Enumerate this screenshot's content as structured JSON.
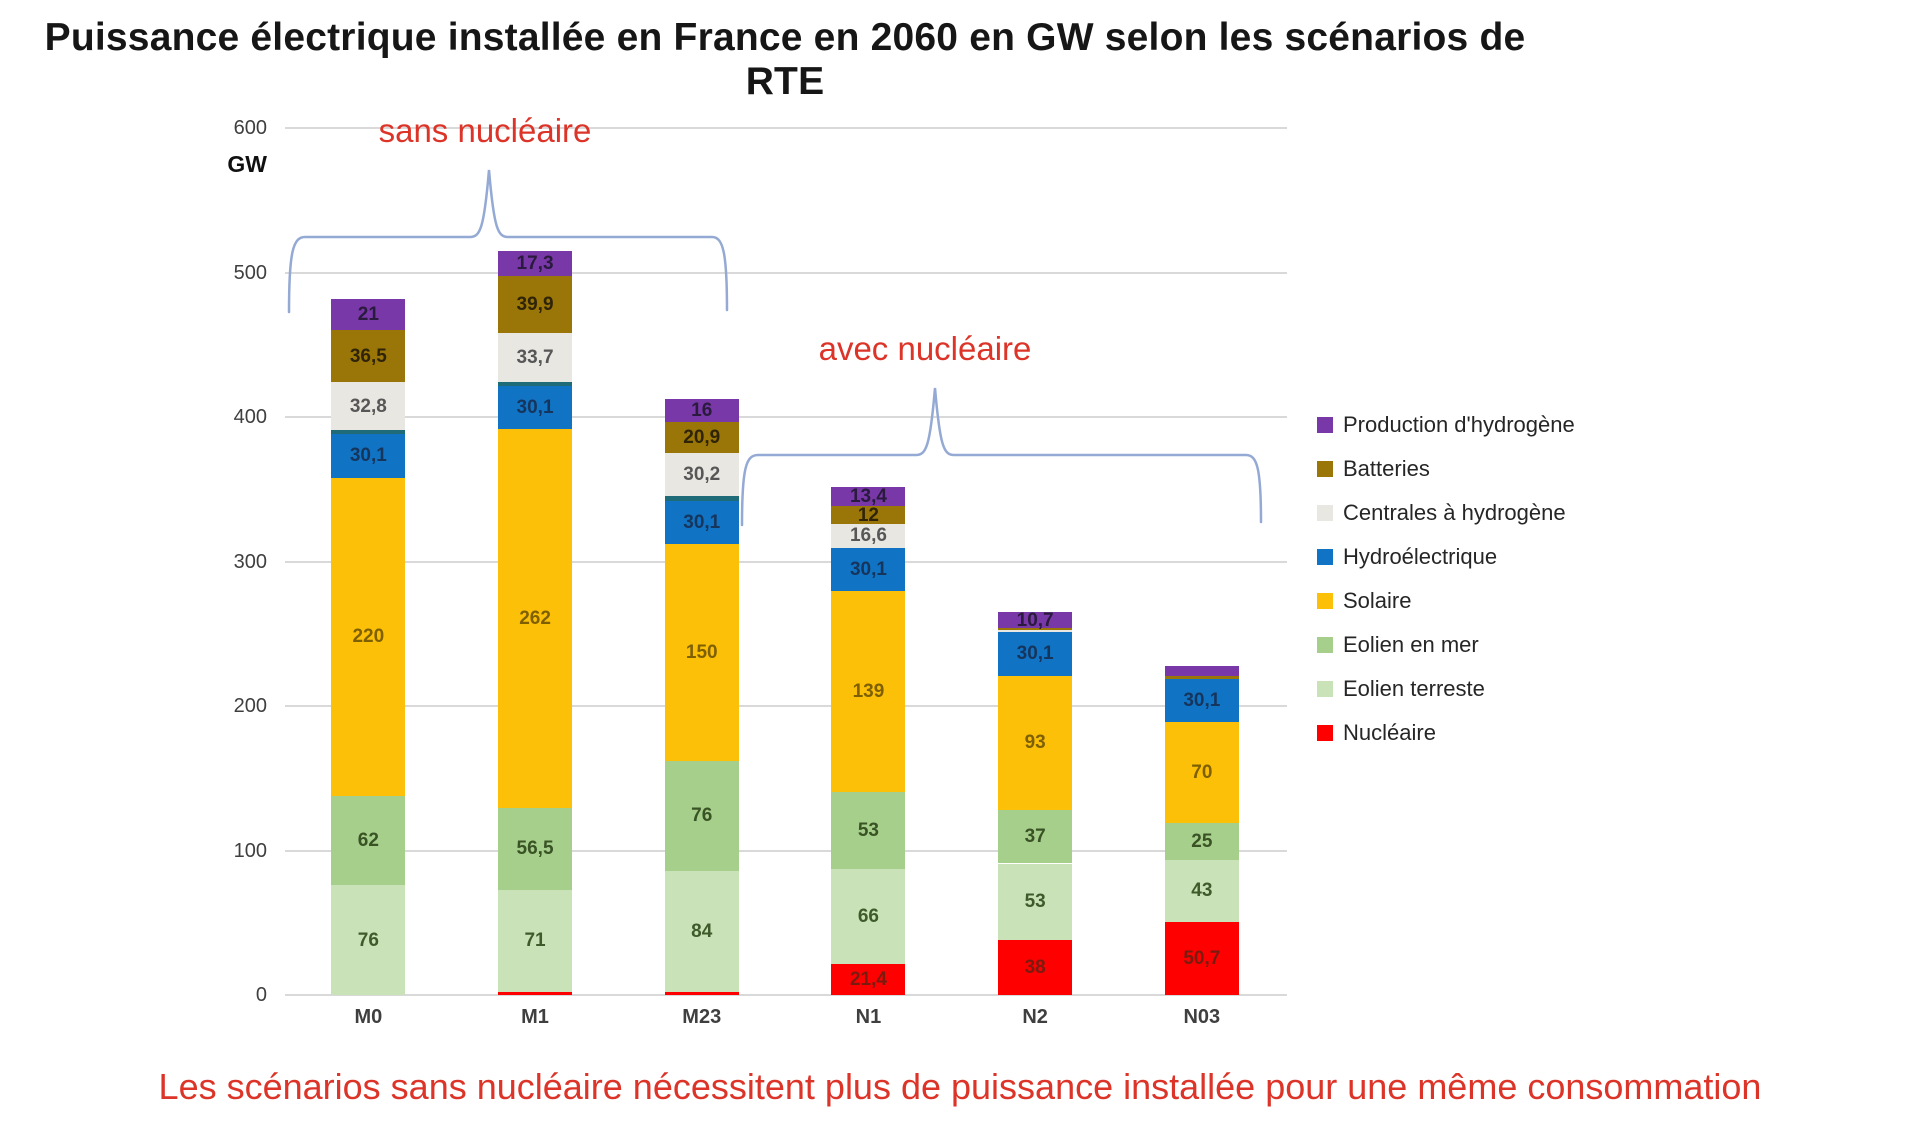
{
  "page": {
    "title": "Puissance électrique installée en France en 2060 en GW selon les scénarios de RTE",
    "caption": "Les scénarios sans nucléaire nécessitent plus de puissance installée pour une même consommation",
    "caption_color": "#DC3428"
  },
  "annotations": {
    "sans_nucleaire": "sans nucléaire",
    "avec_nucleaire": "avec nucléaire",
    "text_color": "#DC3428",
    "brace_color": "#94A9D4"
  },
  "chart_data": {
    "type": "bar",
    "variant": "stacked-column",
    "unit_label": "GW",
    "categories": [
      "M0",
      "M1",
      "M23",
      "N1",
      "N2",
      "N03"
    ],
    "ylim": [
      0,
      600
    ],
    "yticks": [
      0,
      100,
      200,
      300,
      400,
      500,
      600
    ],
    "grid": true,
    "legend_position": "right",
    "series_stack_order": "bottom-to-top",
    "series": [
      {
        "name": "Nucléaire",
        "color": "#FE0000",
        "label_color": "#7A1B10",
        "in_legend": true,
        "values": [
          0,
          2,
          2,
          21.4,
          38,
          50.7
        ],
        "labels": [
          "",
          "",
          "",
          "21,4",
          "38",
          "50,7"
        ]
      },
      {
        "name": "Eolien terreste",
        "color": "#C9E2B8",
        "label_color": "#3F5B2B",
        "in_legend": true,
        "values": [
          76,
          71,
          84,
          66,
          53,
          43
        ],
        "labels": [
          "76",
          "71",
          "84",
          "66",
          "53",
          "43"
        ]
      },
      {
        "name": "Eolien en mer",
        "color": "#A7CF8C",
        "label_color": "#395325",
        "in_legend": true,
        "values": [
          62,
          56.5,
          76,
          53,
          37,
          25
        ],
        "labels": [
          "62",
          "56,5",
          "76",
          "53",
          "37",
          "25"
        ]
      },
      {
        "name": "Solaire",
        "color": "#FDC008",
        "label_color": "#7F6000",
        "in_legend": true,
        "values": [
          220,
          262,
          150,
          139,
          93,
          70
        ],
        "labels": [
          "220",
          "262",
          "150",
          "139",
          "93",
          "70"
        ]
      },
      {
        "name": "Hydroélectrique",
        "color": "#1173C4",
        "label_color": "#16355C",
        "in_legend": true,
        "values": [
          30.1,
          30.1,
          30.1,
          30.1,
          30.1,
          30.1
        ],
        "labels": [
          "30,1",
          "30,1",
          "30,1",
          "30,1",
          "30,1",
          "30,1"
        ]
      },
      {
        "name": "(segment sans légende)",
        "color": "#1F6B78",
        "label_color": "#FFFFFF",
        "in_legend": false,
        "values": [
          3,
          2.5,
          3,
          0,
          0,
          0
        ],
        "labels": [
          "",
          "",
          "",
          "",
          "",
          ""
        ]
      },
      {
        "name": "Centrales à hydrogène",
        "color": "#E9E7E2",
        "label_color": "#575757",
        "in_legend": true,
        "values": [
          32.8,
          33.7,
          30.2,
          16.6,
          1.5,
          0
        ],
        "labels": [
          "32,8",
          "33,7",
          "30,2",
          "16,6",
          "",
          ""
        ]
      },
      {
        "name": "Batteries",
        "color": "#9A7608",
        "label_color": "#2F2407",
        "in_legend": true,
        "values": [
          36.5,
          39.9,
          20.9,
          12,
          1.5,
          2
        ],
        "labels": [
          "36,5",
          "39,9",
          "20,9",
          "12",
          "",
          ""
        ]
      },
      {
        "name": "Production d'hydrogène",
        "color": "#7838A8",
        "label_color": "#2A1A3D",
        "in_legend": true,
        "values": [
          21,
          17.3,
          16,
          13.4,
          10.7,
          7
        ],
        "labels": [
          "21",
          "17,3",
          "16",
          "13,4",
          "10,7",
          ""
        ]
      }
    ]
  }
}
